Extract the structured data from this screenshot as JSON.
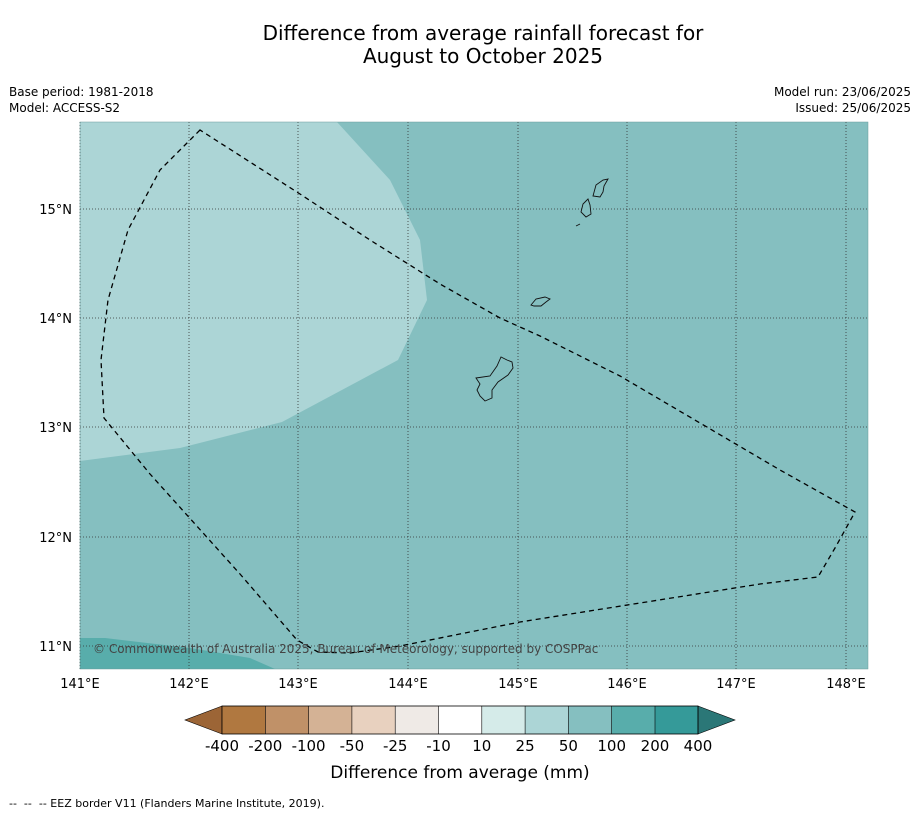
{
  "title_line1": "Difference from average rainfall forecast for",
  "title_line2": "August to October 2025",
  "meta": {
    "base_period": "Base period: 1981-2018",
    "model": "Model: ACCESS-S2",
    "model_run": "Model run: 23/06/2025",
    "issued": "Issued: 25/06/2025"
  },
  "map": {
    "lon_ticks": [
      "141°E",
      "142°E",
      "143°E",
      "144°E",
      "145°E",
      "146°E",
      "147°E",
      "148°E"
    ],
    "lat_ticks": [
      "15°N",
      "14°N",
      "13°N",
      "12°N",
      "11°N"
    ],
    "copyright": "© Commonwealth of Australia 2025, Bureau of Meteorology, supported by COSPPac",
    "region_colors": {
      "category_25_50": "#acd5d6",
      "category_50_100": "#85bfc0",
      "category_100_200": "#58adab"
    }
  },
  "colorbar": {
    "labels": [
      "-400",
      "-200",
      "-100",
      "-50",
      "-25",
      "-10",
      "10",
      "25",
      "50",
      "100",
      "200",
      "400"
    ],
    "colors": [
      "#9c6536",
      "#b07840",
      "#c09168",
      "#d4b295",
      "#e8d1bf",
      "#efeae6",
      "#ffffff",
      "#d5ebe9",
      "#acd5d6",
      "#85bfc0",
      "#58adab",
      "#359a99",
      "#2b7777"
    ],
    "title": "Difference from average (mm)"
  },
  "footnote": "--  --  -- EEZ border V11 (Flanders Marine Institute, 2019)."
}
